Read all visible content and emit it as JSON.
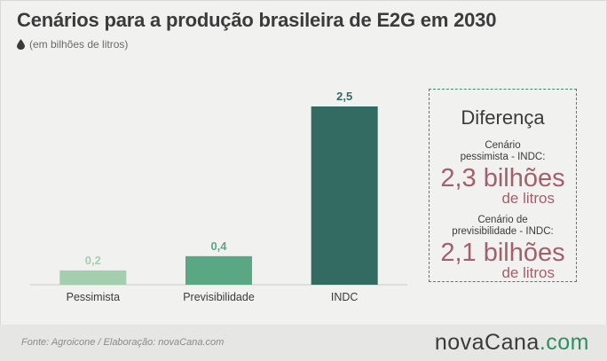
{
  "header": {
    "title": "Cenários para a produção brasileira de E2G em 2030",
    "subtitle": "(em bilhões de litros)"
  },
  "chart_data": {
    "type": "bar",
    "categories": [
      "Pessimista",
      "Previsibilidade",
      "INDC"
    ],
    "values": [
      0.2,
      0.4,
      2.5
    ],
    "value_labels": [
      "0,2",
      "0,4",
      "2,5"
    ],
    "colors": [
      "#a3cfae",
      "#5aa784",
      "#336a61"
    ],
    "label_colors": [
      "#a3cfae",
      "#5aa784",
      "#336a61"
    ],
    "ylim": [
      0,
      2.5
    ],
    "grid": false,
    "xlabel": "",
    "ylabel": ""
  },
  "difference_box": {
    "title": "Diferença",
    "items": [
      {
        "label_line1": "Cenário",
        "label_line2": "pessimista -  INDC:",
        "big": "2,3 bilhões",
        "unit": "de litros"
      },
      {
        "label_line1": "Cenário de",
        "label_line2": "previsibilidade - INDC:",
        "big": "2,1 bilhões",
        "unit": "de litros"
      }
    ]
  },
  "footer": {
    "source": "Fonte:  Agroicone   / Elaboração:  novaCana.com",
    "logo_main": "novaCana",
    "logo_suffix": ".com"
  },
  "colors": {
    "accent": "#2f8f62",
    "highlight": "#a2616a",
    "text": "#3b3b3b"
  }
}
